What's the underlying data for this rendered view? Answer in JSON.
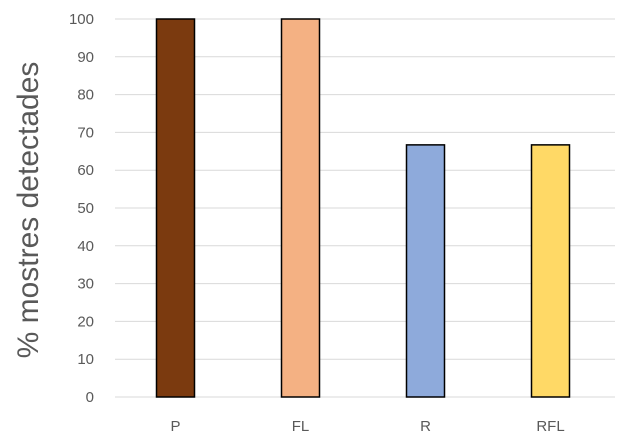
{
  "chart_data": {
    "type": "bar",
    "title": "",
    "xlabel": "",
    "ylabel": "% mostres  detectades",
    "categories": [
      "P",
      "FL",
      "R",
      "RFL"
    ],
    "values": [
      100,
      100,
      66.7,
      66.7
    ],
    "colors": [
      "#7b3a0f",
      "#f4b183",
      "#8eaadb",
      "#ffd966"
    ],
    "ylim": [
      0,
      100
    ],
    "yticks": [
      0,
      10,
      20,
      30,
      40,
      50,
      60,
      70,
      80,
      90,
      100
    ],
    "grid": true,
    "legend": "none"
  }
}
